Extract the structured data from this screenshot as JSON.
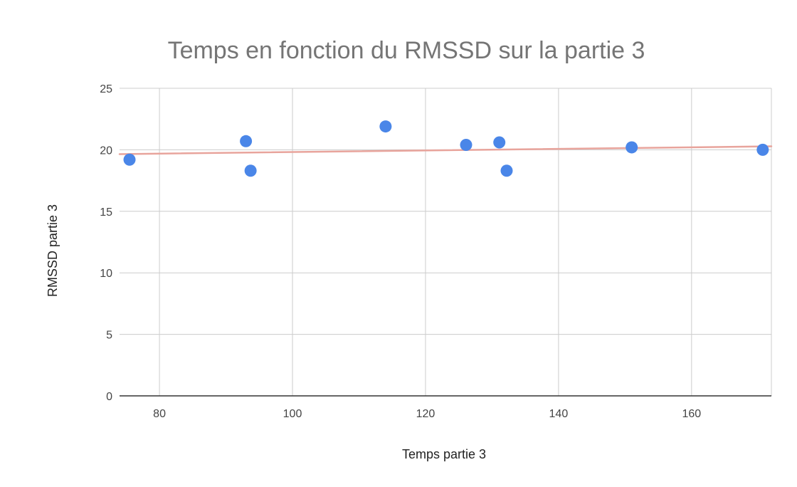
{
  "chart_data": {
    "type": "scatter",
    "title": "Temps en fonction du RMSSD sur la partie 3",
    "xlabel": "Temps partie 3",
    "ylabel": "RMSSD partie 3",
    "xlim": [
      74,
      172
    ],
    "ylim": [
      0,
      25
    ],
    "x_ticks": [
      80,
      100,
      120,
      140,
      160
    ],
    "y_ticks": [
      0,
      5,
      10,
      15,
      20,
      25
    ],
    "grid": true,
    "legend": "none",
    "colors": {
      "points": "#4a86e8",
      "trendline": "#e8a49c"
    },
    "series": [
      {
        "points": [
          {
            "x": 75.5,
            "y": 19.2
          },
          {
            "x": 93,
            "y": 20.7
          },
          {
            "x": 93.7,
            "y": 18.3
          },
          {
            "x": 114,
            "y": 21.9
          },
          {
            "x": 126.1,
            "y": 20.4
          },
          {
            "x": 131.1,
            "y": 20.6
          },
          {
            "x": 132.2,
            "y": 18.3
          },
          {
            "x": 151,
            "y": 20.2
          },
          {
            "x": 170.7,
            "y": 20.0
          }
        ]
      }
    ],
    "trendline": {
      "type": "linear",
      "x": [
        74,
        172
      ],
      "y": [
        19.65,
        20.28
      ]
    }
  }
}
